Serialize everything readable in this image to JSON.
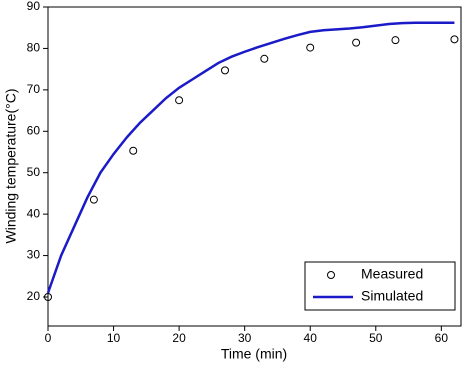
{
  "chart_data": {
    "type": "line",
    "xlabel": "Time (min)",
    "ylabel": "Winding temperature(°C)",
    "xlim": [
      0,
      63
    ],
    "ylim": [
      13,
      90
    ],
    "xticks": [
      0,
      10,
      20,
      30,
      40,
      50,
      60
    ],
    "yticks": [
      20,
      30,
      40,
      50,
      60,
      70,
      80,
      90
    ],
    "legend": "lower right",
    "series": [
      {
        "name": "Measured",
        "type": "scatter",
        "color": "#000000",
        "x": [
          0,
          7,
          13,
          20,
          27,
          33,
          40,
          47,
          53,
          62
        ],
        "values": [
          20,
          43.5,
          55.3,
          67.5,
          74.7,
          77.5,
          80.2,
          81.4,
          82,
          82.2
        ]
      },
      {
        "name": "Simulated",
        "type": "line",
        "color": "#1a1ac8",
        "x": [
          0,
          2,
          4,
          6,
          8,
          10,
          12,
          14,
          16,
          18,
          20,
          22,
          24,
          26,
          28,
          30,
          32,
          34,
          36,
          38,
          40,
          42,
          44,
          46,
          48,
          50,
          52,
          54,
          56,
          58,
          60,
          62
        ],
        "values": [
          21,
          30,
          37,
          44,
          50,
          54.5,
          58.5,
          62,
          65,
          68,
          70.5,
          72.5,
          74.5,
          76.5,
          78,
          79.2,
          80.3,
          81.3,
          82.3,
          83.2,
          84,
          84.4,
          84.6,
          84.8,
          85.1,
          85.5,
          85.9,
          86.1,
          86.2,
          86.2,
          86.2,
          86.2
        ]
      }
    ]
  }
}
